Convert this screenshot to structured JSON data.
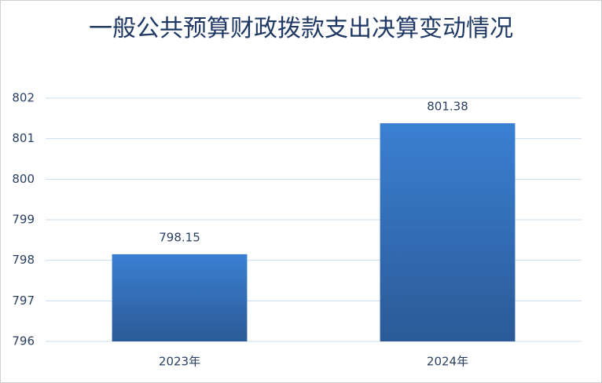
{
  "chart_data": {
    "type": "bar",
    "title": "一般公共预算财政拨款支出决算变动情况",
    "categories": [
      "2023年",
      "2024年"
    ],
    "values": [
      798.15,
      801.38
    ],
    "color": "#3473c0",
    "ylim": [
      796,
      802
    ],
    "yticks": [
      796,
      797,
      798,
      799,
      800,
      801,
      802
    ],
    "grid": true
  }
}
